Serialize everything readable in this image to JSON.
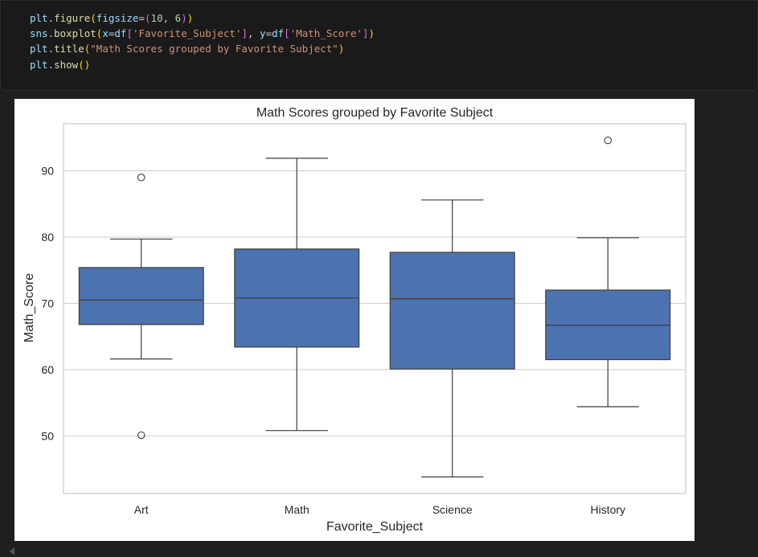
{
  "code": {
    "lines": [
      [
        [
          "plt",
          "#9cdcfe"
        ],
        [
          ".",
          "#cccccc"
        ],
        [
          "figure",
          "#dcdcaa"
        ],
        [
          "(",
          "#ffd700"
        ],
        [
          "figsize",
          "#9cdcfe"
        ],
        [
          "=",
          "#cccccc"
        ],
        [
          "(",
          "#da70d6"
        ],
        [
          "10",
          "#b5cea8"
        ],
        [
          ", ",
          "#cccccc"
        ],
        [
          "6",
          "#b5cea8"
        ],
        [
          ")",
          "#da70d6"
        ],
        [
          ")",
          "#ffd700"
        ]
      ],
      [
        [
          "sns",
          "#9cdcfe"
        ],
        [
          ".",
          "#cccccc"
        ],
        [
          "boxplot",
          "#dcdcaa"
        ],
        [
          "(",
          "#ffd700"
        ],
        [
          "x",
          "#9cdcfe"
        ],
        [
          "=",
          "#cccccc"
        ],
        [
          "df",
          "#9cdcfe"
        ],
        [
          "[",
          "#da70d6"
        ],
        [
          "'Favorite_Subject'",
          "#ce9178"
        ],
        [
          "]",
          "#da70d6"
        ],
        [
          ", ",
          "#cccccc"
        ],
        [
          "y",
          "#9cdcfe"
        ],
        [
          "=",
          "#cccccc"
        ],
        [
          "df",
          "#9cdcfe"
        ],
        [
          "[",
          "#da70d6"
        ],
        [
          "'Math_Score'",
          "#ce9178"
        ],
        [
          "]",
          "#da70d6"
        ],
        [
          ")",
          "#ffd700"
        ]
      ],
      [
        [
          "plt",
          "#9cdcfe"
        ],
        [
          ".",
          "#cccccc"
        ],
        [
          "title",
          "#dcdcaa"
        ],
        [
          "(",
          "#ffd700"
        ],
        [
          "\"Math Scores grouped by Favorite Subject\"",
          "#ce9178"
        ],
        [
          ")",
          "#ffd700"
        ]
      ],
      [
        [
          "plt",
          "#9cdcfe"
        ],
        [
          ".",
          "#cccccc"
        ],
        [
          "show",
          "#dcdcaa"
        ],
        [
          "(",
          "#ffd700"
        ],
        [
          ")",
          "#ffd700"
        ]
      ]
    ]
  },
  "chart_data": {
    "type": "box",
    "title": "Math Scores grouped by Favorite Subject",
    "xlabel": "Favorite_Subject",
    "ylabel": "Math_Score",
    "categories": [
      "Art",
      "Math",
      "Science",
      "History"
    ],
    "yticks": [
      50,
      60,
      70,
      80,
      90
    ],
    "ylim": [
      41.3,
      97.1
    ],
    "grid": true,
    "box_color": "#4c72b0",
    "boxes": [
      {
        "category": "Art",
        "whisker_low": 61.6,
        "q1": 66.8,
        "median": 70.5,
        "q3": 75.4,
        "whisker_high": 79.7,
        "outliers": [
          89.0,
          50.1
        ]
      },
      {
        "category": "Math",
        "whisker_low": 50.8,
        "q1": 63.4,
        "median": 70.8,
        "q3": 78.2,
        "whisker_high": 91.9,
        "outliers": []
      },
      {
        "category": "Science",
        "whisker_low": 43.8,
        "q1": 60.1,
        "median": 70.7,
        "q3": 77.7,
        "whisker_high": 85.6,
        "outliers": []
      },
      {
        "category": "History",
        "whisker_low": 54.4,
        "q1": 61.5,
        "median": 66.7,
        "q3": 72.0,
        "whisker_high": 79.9,
        "outliers": [
          94.6
        ]
      }
    ]
  }
}
